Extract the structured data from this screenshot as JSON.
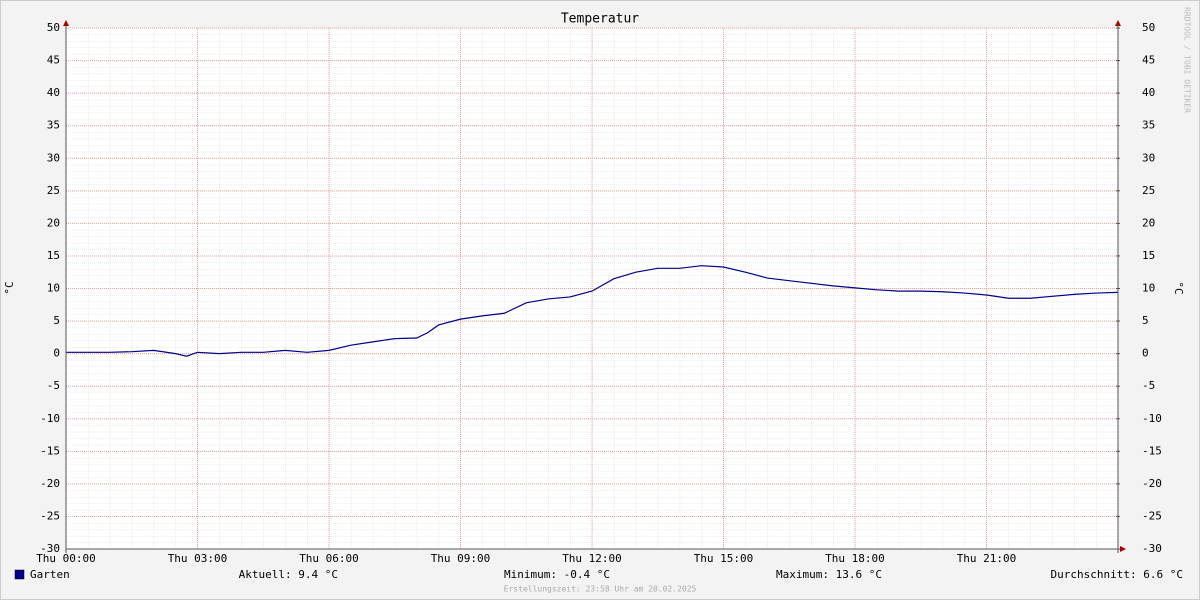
{
  "chart_data": {
    "type": "line",
    "title": "Temperatur",
    "y_label": "°C",
    "y2_label": "°C",
    "x": [
      0,
      0.5,
      1,
      1.5,
      2,
      2.5,
      2.75,
      3,
      3.5,
      4,
      4.5,
      5,
      5.5,
      6,
      6.5,
      7,
      7.5,
      8,
      8.25,
      8.5,
      9,
      9.5,
      10,
      10.5,
      11,
      11.5,
      12,
      12.5,
      13,
      13.5,
      14,
      14.5,
      15,
      15.5,
      16,
      16.5,
      17,
      17.5,
      18,
      18.5,
      19,
      19.5,
      20,
      20.5,
      21,
      21.5,
      22,
      22.5,
      23,
      23.5,
      24
    ],
    "series": [
      {
        "name": "Garten",
        "color": "#00008b",
        "values": [
          0.2,
          0.2,
          0.2,
          0.3,
          0.5,
          0,
          -0.4,
          0.2,
          0,
          0.2,
          0.2,
          0.5,
          0.2,
          0.5,
          1.3,
          1.8,
          2.3,
          2.4,
          3.2,
          4.4,
          5.3,
          5.8,
          6.2,
          7.8,
          8.4,
          8.7,
          9.6,
          11.5,
          12.5,
          13.1,
          13.1,
          13.5,
          13.3,
          12.5,
          11.6,
          11.2,
          10.8,
          10.4,
          10.1,
          9.8,
          9.6,
          9.6,
          9.5,
          9.3,
          9.0,
          8.5,
          8.5,
          8.8,
          9.1,
          9.3,
          9.4
        ]
      }
    ],
    "xlim": [
      0,
      24
    ],
    "xticks": [
      {
        "value": 0,
        "label": "Thu 00:00"
      },
      {
        "value": 3,
        "label": "Thu 03:00"
      },
      {
        "value": 6,
        "label": "Thu 06:00"
      },
      {
        "value": 9,
        "label": "Thu 09:00"
      },
      {
        "value": 12,
        "label": "Thu 12:00"
      },
      {
        "value": 15,
        "label": "Thu 15:00"
      },
      {
        "value": 18,
        "label": "Thu 18:00"
      },
      {
        "value": 21,
        "label": "Thu 21:00"
      }
    ],
    "ylim": [
      -30,
      50
    ],
    "yticks": [
      -30,
      -25,
      -20,
      -15,
      -10,
      -5,
      0,
      5,
      10,
      15,
      20,
      25,
      30,
      35,
      40,
      45,
      50
    ],
    "y2lim": [
      -30,
      50
    ],
    "y2ticks": [
      -30,
      -25,
      -20,
      -15,
      -10,
      -5,
      0,
      5,
      10,
      15,
      20,
      25,
      30,
      35,
      40,
      45,
      50
    ],
    "grid": true,
    "stats": [
      "Aktuell: 9.4 °C",
      "Minimum: -0.4 °C",
      "Maximum: 13.6 °C",
      "Durchschnitt: 6.6 °C"
    ],
    "footer": "Erstellungszeit: 23:58 Uhr am 20.02.2025",
    "watermark": "RRDTOOL / TOBI OETIKER"
  }
}
